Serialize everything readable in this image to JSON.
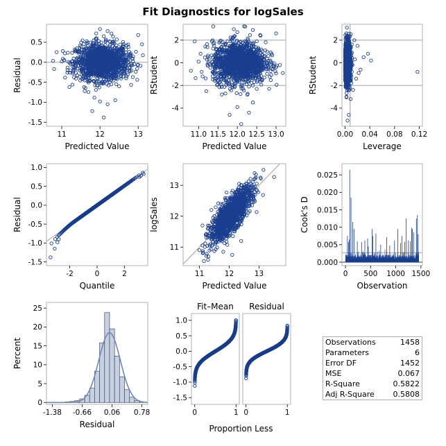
{
  "title": "Fit Diagnostics for logSales",
  "colors": {
    "marker": "#1a3f8f",
    "refline": "#a0a0a0",
    "frame": "#b0b0b0",
    "hist_fill": "#c6d0e0",
    "density": "#6f86b2"
  },
  "stats": [
    {
      "label": "Observations",
      "value": "1458"
    },
    {
      "label": "Parameters",
      "value": "6"
    },
    {
      "label": "Error DF",
      "value": "1452"
    },
    {
      "label": "MSE",
      "value": "0.067"
    },
    {
      "label": "R-Square",
      "value": "0.5822"
    },
    {
      "label": "Adj R-Square",
      "value": "0.5808"
    }
  ],
  "chart_data": [
    {
      "id": "resid_vs_pred",
      "type": "scatter",
      "xlabel": "Predicted Value",
      "ylabel": "Residual",
      "xlim": [
        10.6,
        13.25
      ],
      "ylim": [
        -1.6,
        0.95
      ],
      "xticks": [
        11,
        12,
        13
      ],
      "yticks": [
        -1.5,
        -1.0,
        -0.5,
        0.0,
        0.5
      ],
      "xticklabels": [
        "11",
        "12",
        "13"
      ],
      "yticklabels": [
        "-1.5",
        "-1.0",
        "-0.5",
        "0.0",
        "0.5"
      ],
      "hlines": [
        0
      ],
      "points": [
        [
          12.0,
          0.83
        ],
        [
          12.2,
          0.78
        ],
        [
          13.0,
          0.68
        ],
        [
          12.3,
          0.72
        ],
        [
          11.9,
          0.6
        ],
        [
          12.1,
          0.65
        ],
        [
          11.4,
          0.35
        ],
        [
          12.7,
          0.42
        ],
        [
          13.1,
          0.45
        ],
        [
          11.0,
          0.02
        ],
        [
          10.8,
          -0.17
        ],
        [
          11.2,
          -0.62
        ],
        [
          11.6,
          -0.72
        ],
        [
          12.0,
          -0.98
        ],
        [
          12.2,
          -1.05
        ],
        [
          11.8,
          -1.22
        ],
        [
          12.1,
          -1.38
        ],
        [
          12.5,
          -0.6
        ],
        [
          12.7,
          -0.35
        ],
        [
          12.4,
          -0.95
        ],
        [
          11.5,
          0.12
        ],
        [
          12.6,
          0.25
        ],
        [
          12.8,
          0.15
        ],
        [
          11.7,
          -0.4
        ],
        [
          12.3,
          -0.55
        ],
        [
          12.0,
          0.3
        ],
        [
          11.9,
          -0.2
        ],
        [
          12.2,
          0.1
        ],
        [
          12.1,
          -0.1
        ],
        [
          12.4,
          0.05
        ],
        [
          11.8,
          0.05
        ],
        [
          12.05,
          0.42
        ],
        [
          11.85,
          0.48
        ],
        [
          12.35,
          0.52
        ],
        [
          11.3,
          -0.25
        ],
        [
          12.9,
          -0.05
        ]
      ],
      "cloud": {
        "x_mean": 12.05,
        "x_sd": 0.34,
        "y_mean": 0.0,
        "y_sd": 0.22,
        "n": 1458
      }
    },
    {
      "id": "rstudent_vs_pred",
      "type": "scatter",
      "xlabel": "Predicted Value",
      "ylabel": "RStudent",
      "xlim": [
        10.6,
        13.25
      ],
      "ylim": [
        -5.6,
        3.4
      ],
      "xticks": [
        11.0,
        11.5,
        12.0,
        12.5,
        13.0
      ],
      "yticks": [
        -4,
        -2,
        0,
        2
      ],
      "xticklabels": [
        "11.0",
        "11.5",
        "12.0",
        "12.5",
        "13.0"
      ],
      "yticklabels": [
        "-4",
        "-2",
        "0",
        "2"
      ],
      "hlines": [
        -2,
        2
      ],
      "points": [
        [
          12.2,
          3.2
        ],
        [
          12.4,
          2.9
        ],
        [
          12.0,
          2.7
        ],
        [
          13.0,
          2.6
        ],
        [
          12.6,
          2.4
        ],
        [
          11.4,
          1.5
        ],
        [
          10.8,
          -0.7
        ],
        [
          11.2,
          -2.5
        ],
        [
          11.6,
          -2.8
        ],
        [
          12.0,
          -3.9
        ],
        [
          12.3,
          -4.4
        ],
        [
          11.8,
          -4.6
        ],
        [
          12.1,
          -5.4
        ],
        [
          12.5,
          -2.3
        ],
        [
          12.7,
          -1.3
        ],
        [
          12.4,
          -3.5
        ],
        [
          11.5,
          0.4
        ],
        [
          12.8,
          0.6
        ],
        [
          13.1,
          -0.2
        ],
        [
          11.7,
          -1.6
        ],
        [
          12.3,
          -2.1
        ],
        [
          11.0,
          0.1
        ]
      ],
      "cloud": {
        "x_mean": 12.05,
        "x_sd": 0.34,
        "y_mean": 0.0,
        "y_sd": 0.9,
        "n": 1458
      }
    },
    {
      "id": "rstudent_vs_leverage",
      "type": "scatter",
      "xlabel": "Leverage",
      "ylabel": "RStudent",
      "xlim": [
        -0.005,
        0.125
      ],
      "ylim": [
        -5.6,
        3.4
      ],
      "xticks": [
        0.0,
        0.04,
        0.08,
        0.12
      ],
      "yticks": [
        -4,
        -2,
        0,
        2
      ],
      "xticklabels": [
        "0.00",
        "0.04",
        "0.08",
        "0.12"
      ],
      "yticklabels": [
        "-4",
        "-2",
        "0",
        "2"
      ],
      "hlines": [
        -2,
        2
      ],
      "vlines": [
        0.0082
      ],
      "points": [
        [
          0.117,
          -0.8
        ],
        [
          0.042,
          0.2
        ],
        [
          0.037,
          0.8
        ],
        [
          0.03,
          0.5
        ],
        [
          0.025,
          -0.6
        ],
        [
          0.02,
          1.5
        ],
        [
          0.018,
          -1.4
        ],
        [
          0.015,
          2.0
        ],
        [
          0.013,
          -2.4
        ],
        [
          0.011,
          0.9
        ],
        [
          0.009,
          -3.2
        ],
        [
          0.006,
          -4.6
        ],
        [
          0.004,
          -5.1
        ],
        [
          0.003,
          3.1
        ],
        [
          0.002,
          2.6
        ],
        [
          0.005,
          2.3
        ],
        [
          0.008,
          1.0
        ],
        [
          0.012,
          -0.2
        ],
        [
          0.016,
          0.3
        ],
        [
          0.022,
          -0.9
        ],
        [
          0.01,
          -1.8
        ]
      ],
      "cloud": {
        "x_mean": 0.004,
        "x_sd": 0.0025,
        "y_mean": 0.0,
        "y_sd": 0.9,
        "n": 1458
      }
    },
    {
      "id": "qq_plot",
      "type": "scatter",
      "xlabel": "Quantile",
      "ylabel": "Residual",
      "xlim": [
        -3.7,
        3.7
      ],
      "ylim": [
        -1.6,
        1.1
      ],
      "xticks": [
        -2,
        0,
        2
      ],
      "yticks": [
        -1.5,
        -1.0,
        -0.5,
        0.0,
        0.5,
        1.0
      ],
      "xticklabels": [
        "-2",
        "0",
        "2"
      ],
      "yticklabels": [
        "-1.5",
        "-1.0",
        "-0.5",
        "0.0",
        "0.5",
        "1.0"
      ],
      "refline": {
        "slope": 0.2588,
        "intercept": 0.0
      },
      "qq": {
        "n": 1458,
        "scale": 0.2588
      },
      "points": [
        [
          -3.4,
          -1.38
        ],
        [
          -3.1,
          -1.15
        ],
        [
          -2.9,
          -0.98
        ],
        [
          -2.8,
          -0.9
        ],
        [
          3.4,
          0.83
        ],
        [
          3.2,
          0.78
        ],
        [
          3.1,
          0.75
        ]
      ]
    },
    {
      "id": "obs_vs_pred",
      "type": "scatter",
      "xlabel": "Predicted Value",
      "ylabel": "logSales",
      "xlim": [
        10.45,
        13.9
      ],
      "ylim": [
        10.4,
        13.7
      ],
      "xticks": [
        11,
        12,
        13
      ],
      "yticks": [
        11,
        12,
        13
      ],
      "xticklabels": [
        "11",
        "12",
        "13"
      ],
      "yticklabels": [
        "11",
        "12",
        "13"
      ],
      "refline": {
        "slope": 1,
        "intercept": 0
      },
      "points": [
        [
          13.15,
          13.5
        ],
        [
          13.05,
          13.25
        ],
        [
          12.9,
          13.35
        ],
        [
          11.15,
          10.55
        ],
        [
          11.3,
          10.7
        ],
        [
          11.0,
          10.9
        ],
        [
          12.1,
          10.75
        ],
        [
          11.8,
          10.85
        ],
        [
          12.4,
          11.2
        ],
        [
          11.1,
          11.7
        ],
        [
          11.4,
          12.2
        ]
      ],
      "cloud": {
        "x_mean": 12.05,
        "x_sd": 0.34,
        "y_mean": 0.0,
        "y_sd": 0.26,
        "n": 1458,
        "y_from_x": true
      }
    },
    {
      "id": "cooks_d",
      "type": "needle",
      "xlabel": "Observation",
      "ylabel": "Cook's D",
      "xlim": [
        -70,
        1530
      ],
      "ylim": [
        -0.001,
        0.0282
      ],
      "xticks": [
        0,
        500,
        1000,
        1500
      ],
      "yticks": [
        0.0,
        0.005,
        0.01,
        0.015,
        0.02,
        0.025
      ],
      "xticklabels": [
        "0",
        "500",
        "1000",
        "1500"
      ],
      "yticklabels": [
        "0.000",
        "0.005",
        "0.010",
        "0.015",
        "0.020",
        "0.025"
      ],
      "hlines": [
        0.0027
      ],
      "n": 1458,
      "spikes": [
        [
          85,
          0.0265
        ],
        [
          110,
          0.0185
        ],
        [
          145,
          0.0115
        ],
        [
          38,
          0.0075
        ],
        [
          60,
          0.0058
        ],
        [
          75,
          0.0065
        ],
        [
          170,
          0.0095
        ],
        [
          235,
          0.006
        ],
        [
          320,
          0.0058
        ],
        [
          385,
          0.0062
        ],
        [
          440,
          0.0068
        ],
        [
          455,
          0.0045
        ],
        [
          530,
          0.0095
        ],
        [
          545,
          0.0075
        ],
        [
          605,
          0.0082
        ],
        [
          820,
          0.0072
        ],
        [
          975,
          0.0062
        ],
        [
          1040,
          0.0095
        ],
        [
          1125,
          0.0075
        ],
        [
          1180,
          0.0058
        ],
        [
          1205,
          0.0125
        ],
        [
          1250,
          0.0062
        ],
        [
          1290,
          0.006
        ],
        [
          1315,
          0.0098
        ],
        [
          1330,
          0.0095
        ],
        [
          1355,
          0.0085
        ],
        [
          1410,
          0.0125
        ],
        [
          1430,
          0.0135
        ],
        [
          1445,
          0.008
        ],
        [
          1095,
          0.0055
        ],
        [
          700,
          0.005
        ],
        [
          880,
          0.0048
        ]
      ]
    },
    {
      "id": "residual_histogram",
      "type": "histogram",
      "xlabel": "Residual",
      "ylabel": "Percent",
      "xlim": [
        -1.52,
        0.92
      ],
      "ylim": [
        -0.5,
        26.5
      ],
      "xticks": [
        -1.38,
        -0.66,
        0.06,
        0.78
      ],
      "yticks": [
        0,
        5,
        10,
        15,
        20,
        25
      ],
      "xticklabels": [
        "-1.38",
        "-0.66",
        "0.06",
        "0.78"
      ],
      "yticklabels": [
        "0",
        "5",
        "10",
        "15",
        "20",
        "25"
      ],
      "bin_start": -1.44,
      "bin_width": 0.12,
      "values": [
        0.07,
        0.0,
        0.07,
        0.14,
        0.27,
        0.48,
        0.96,
        1.9,
        3.8,
        8.3,
        15.8,
        23.8,
        19.5,
        12.3,
        6.8,
        3.4,
        1.4,
        0.5,
        0.2
      ],
      "density": {
        "mean": 0.0,
        "sd": 0.259
      }
    },
    {
      "id": "fit_mean",
      "type": "rf_spread",
      "title": "Fit–Mean",
      "xlabel": "Proportion Less",
      "ylabel": "",
      "xlim": [
        -0.08,
        1.08
      ],
      "ylim": [
        -1.72,
        1.22
      ],
      "xticks": [
        0,
        1
      ],
      "yticks": [
        -1.5,
        -1.0,
        -0.5,
        0.0,
        0.5,
        1.0
      ],
      "xticklabels": [
        "0",
        "1"
      ],
      "yticklabels": [
        "-1.5",
        "-1.0",
        "-0.5",
        "0.0",
        "0.5",
        "1.0"
      ],
      "spread": {
        "n": 1458,
        "scale": 0.33,
        "min": -1.28,
        "max": 1.0
      }
    },
    {
      "id": "residual_spread",
      "type": "rf_spread",
      "title": "Residual",
      "xlabel": "",
      "ylabel": "",
      "xlim": [
        -0.08,
        1.08
      ],
      "ylim": [
        -1.72,
        1.22
      ],
      "xticks": [
        0,
        1
      ],
      "yticks": [],
      "xticklabels": [
        "0",
        "1"
      ],
      "yticklabels": [],
      "spread": {
        "n": 1458,
        "scale": 0.2588,
        "min": -1.38,
        "max": 0.83
      }
    }
  ],
  "shared_xlabel": "Proportion Less"
}
